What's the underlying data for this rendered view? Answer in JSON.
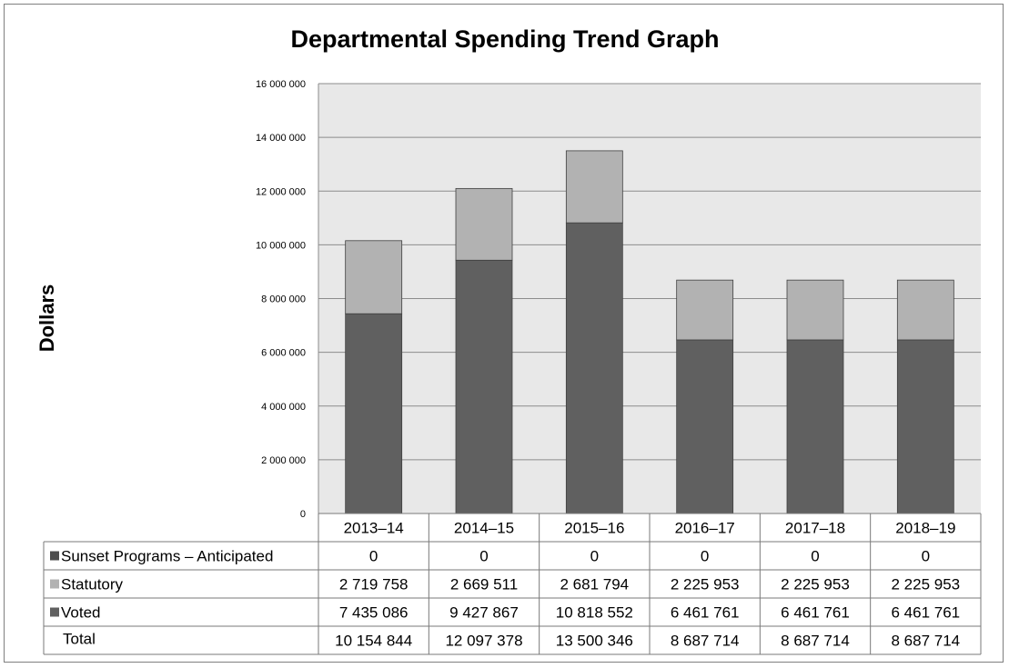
{
  "chart_data": {
    "type": "bar",
    "stacked": true,
    "title": "Departmental Spending Trend Graph",
    "ylabel": "Dollars",
    "xlabel": "",
    "ylim": [
      0,
      16000000
    ],
    "ytick_step": 2000000,
    "ytick_labels": [
      "0",
      "2 000 000",
      "4 000 000",
      "6 000 000",
      "8 000 000",
      "10 000 000",
      "12 000 000",
      "14 000 000",
      "16 000 000"
    ],
    "grid": true,
    "legend": "data-table",
    "categories": [
      "2013–14",
      "2014–15",
      "2015–16",
      "2016–17",
      "2017–18",
      "2018–19"
    ],
    "series": [
      {
        "name": "Voted",
        "color": "#606060",
        "values": [
          7435086,
          9427867,
          10818552,
          6461761,
          6461761,
          6461761
        ],
        "labels": [
          "7 435 086",
          "9 427 867",
          "10 818 552",
          "6 461 761",
          "6 461 761",
          "6 461 761"
        ]
      },
      {
        "name": "Statutory",
        "color": "#b2b2b2",
        "values": [
          2719758,
          2669511,
          2681794,
          2225953,
          2225953,
          2225953
        ],
        "labels": [
          "2 719 758",
          "2 669 511",
          "2 681 794",
          "2 225 953",
          "2 225 953",
          "2 225 953"
        ]
      },
      {
        "name": "Sunset Programs – Anticipated",
        "color": "#4d4d4d",
        "values": [
          0,
          0,
          0,
          0,
          0,
          0
        ],
        "labels": [
          "0",
          "0",
          "0",
          "0",
          "0",
          "0"
        ]
      }
    ],
    "table_order": [
      "Sunset Programs – Anticipated",
      "Statutory",
      "Voted"
    ],
    "total": {
      "name": "Total",
      "values": [
        10154844,
        12097378,
        13500346,
        8687714,
        8687714,
        8687714
      ],
      "labels": [
        "10 154 844",
        "12 097 378",
        "13 500 346",
        "8 687 714",
        "8 687 714",
        "8 687 714"
      ]
    },
    "colors": {
      "plot_background": "#e8e8e8",
      "gridline": "#8c8c8c",
      "bar_outline": "#404040"
    }
  }
}
